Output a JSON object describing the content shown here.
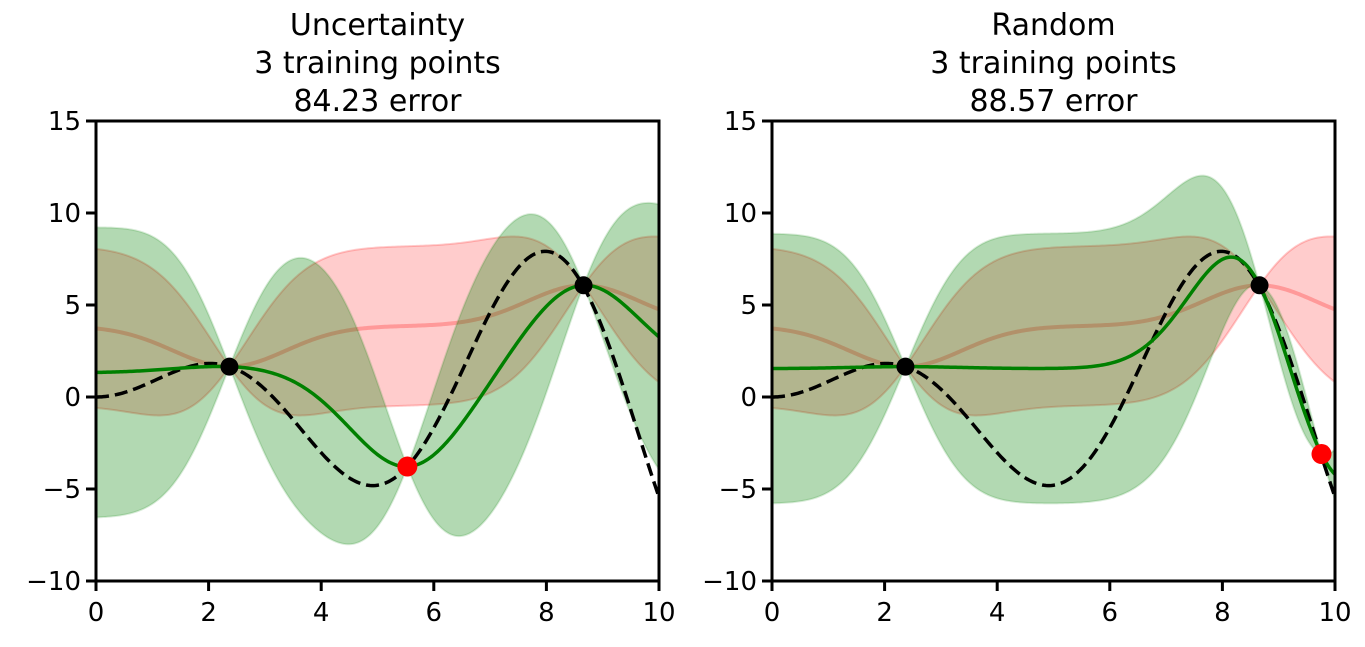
{
  "chart_data": [
    {
      "type": "line",
      "title_lines": [
        "Uncertainty",
        "3 training points",
        "84.23 error"
      ],
      "xlim": [
        0,
        10
      ],
      "ylim": [
        -10,
        15
      ],
      "xticks": [
        0,
        2,
        4,
        6,
        8,
        10
      ],
      "yticks": [
        -10,
        -5,
        0,
        5,
        10,
        15
      ],
      "grid": false,
      "true_function": "x*sin(x)",
      "prior_points": [
        {
          "x": 2.37,
          "y": 1.65
        },
        {
          "x": 8.66,
          "y": 6.07
        }
      ],
      "new_point": {
        "x": 5.53,
        "y": -3.78
      }
    },
    {
      "type": "line",
      "title_lines": [
        "Random",
        "3 training points",
        "88.57 error"
      ],
      "xlim": [
        0,
        10
      ],
      "ylim": [
        -10,
        15
      ],
      "xticks": [
        0,
        2,
        4,
        6,
        8,
        10
      ],
      "yticks": [
        -10,
        -5,
        0,
        5,
        10,
        15
      ],
      "grid": false,
      "true_function": "x*sin(x)",
      "prior_points": [
        {
          "x": 2.37,
          "y": 1.65
        },
        {
          "x": 8.66,
          "y": 6.07
        }
      ],
      "new_point": {
        "x": 9.76,
        "y": -3.1
      }
    }
  ],
  "colors": {
    "prior_band": "#ff0000",
    "posterior_band": "#008000",
    "posterior_mean": "#008000",
    "true_function": "#000000",
    "training_point": "#000000",
    "new_point": "#ff0000"
  }
}
